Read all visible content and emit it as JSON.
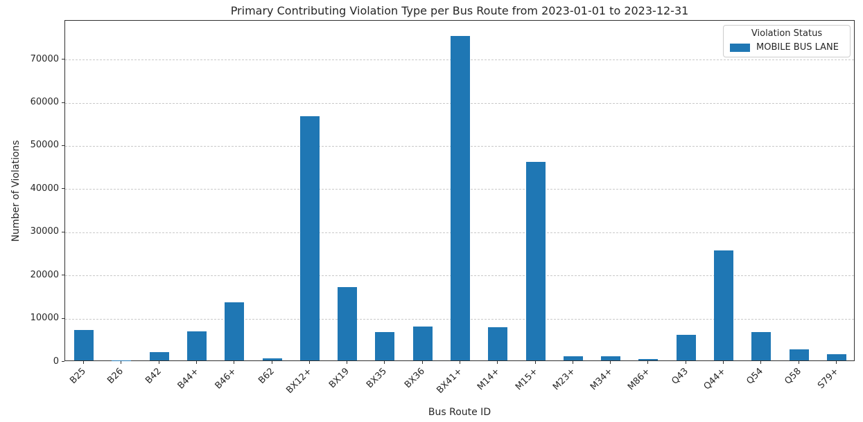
{
  "chart_data": {
    "type": "bar",
    "title": "Primary Contributing Violation Type per Bus Route from 2023-01-01 to 2023-12-31",
    "xlabel": "Bus Route ID",
    "ylabel": "Number of Violations",
    "categories": [
      "B25",
      "B26",
      "B42",
      "B44+",
      "B46+",
      "B62",
      "BX12+",
      "BX19",
      "BX35",
      "BX36",
      "BX41+",
      "M14+",
      "M15+",
      "M23+",
      "M34+",
      "M86+",
      "Q43",
      "Q44+",
      "Q54",
      "Q58",
      "S79+"
    ],
    "values": [
      7000,
      20,
      2000,
      6700,
      13500,
      500,
      56500,
      17000,
      6600,
      7800,
      75200,
      7700,
      46000,
      1000,
      1000,
      400,
      6000,
      25500,
      6600,
      2500,
      1500
    ],
    "ylim": [
      0,
      79000
    ],
    "yticks": [
      0,
      10000,
      20000,
      30000,
      40000,
      50000,
      60000,
      70000
    ],
    "grid": "horizontal-dashed",
    "bar_color": "#1f77b4",
    "legend": {
      "title": "Violation Status",
      "position": "upper right",
      "entries": [
        {
          "label": "MOBILE BUS LANE",
          "color": "#1f77b4"
        }
      ]
    }
  }
}
